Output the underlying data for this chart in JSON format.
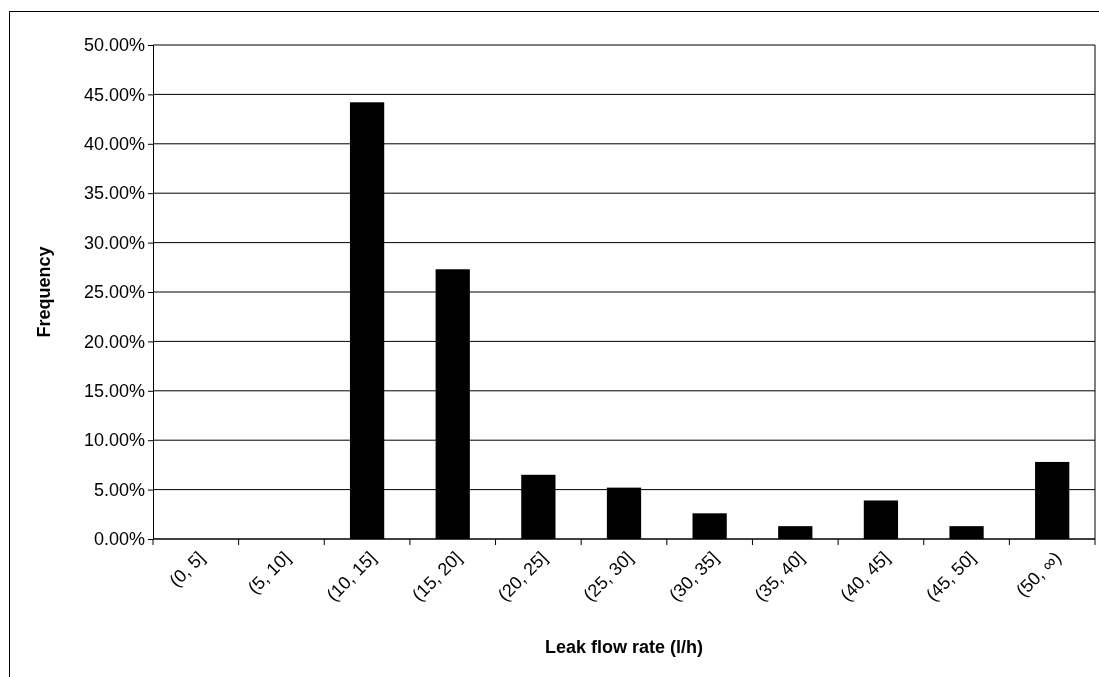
{
  "chart_data": {
    "type": "bar",
    "xlabel": "Leak flow rate (l/h)",
    "ylabel": "Frequency",
    "categories": [
      "(0, 5]",
      "(5, 10]",
      "(10, 15]",
      "(15, 20]",
      "(20, 25]",
      "(25, 30]",
      "(30, 35]",
      "(35, 40]",
      "(40, 45]",
      "(45, 50]",
      "(50, ∞)"
    ],
    "values": [
      0,
      0,
      44.2,
      27.3,
      6.5,
      5.2,
      2.6,
      1.3,
      3.9,
      1.3,
      7.8
    ],
    "color": "#000000",
    "ylim": [
      0,
      50
    ],
    "yticks": [
      {
        "value": 0,
        "label": "0.00%"
      },
      {
        "value": 5,
        "label": "5.00%"
      },
      {
        "value": 10,
        "label": "10.00%"
      },
      {
        "value": 15,
        "label": "15.00%"
      },
      {
        "value": 20,
        "label": "20.00%"
      },
      {
        "value": 25,
        "label": "25.00%"
      },
      {
        "value": 30,
        "label": "30.00%"
      },
      {
        "value": 35,
        "label": "35.00%"
      },
      {
        "value": 40,
        "label": "40.00%"
      },
      {
        "value": 45,
        "label": "45.00%"
      },
      {
        "value": 50,
        "label": "50.00%"
      }
    ],
    "grid": "y"
  }
}
